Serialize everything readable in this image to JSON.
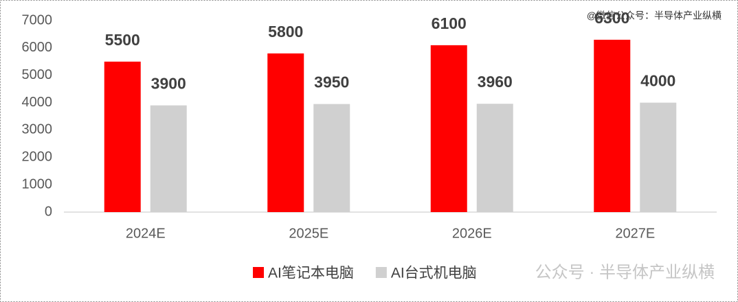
{
  "chart_data": {
    "type": "bar",
    "categories": [
      "2024E",
      "2025E",
      "2026E",
      "2027E"
    ],
    "series": [
      {
        "name": "AI笔记本电脑",
        "color": "#ff0000",
        "values": [
          5500,
          5800,
          6100,
          6300
        ]
      },
      {
        "name": "AI台式机电脑",
        "color": "#d0d0d0",
        "values": [
          3900,
          3950,
          3960,
          4000
        ]
      }
    ],
    "ylim": [
      0,
      7000
    ],
    "yticks": [
      0,
      1000,
      2000,
      3000,
      4000,
      5000,
      6000,
      7000
    ],
    "grid": false,
    "legend": "bottom",
    "watermarks": [
      "@微信公众号：半导体产业纵横",
      "公众号 · 半导体产业纵横"
    ]
  }
}
